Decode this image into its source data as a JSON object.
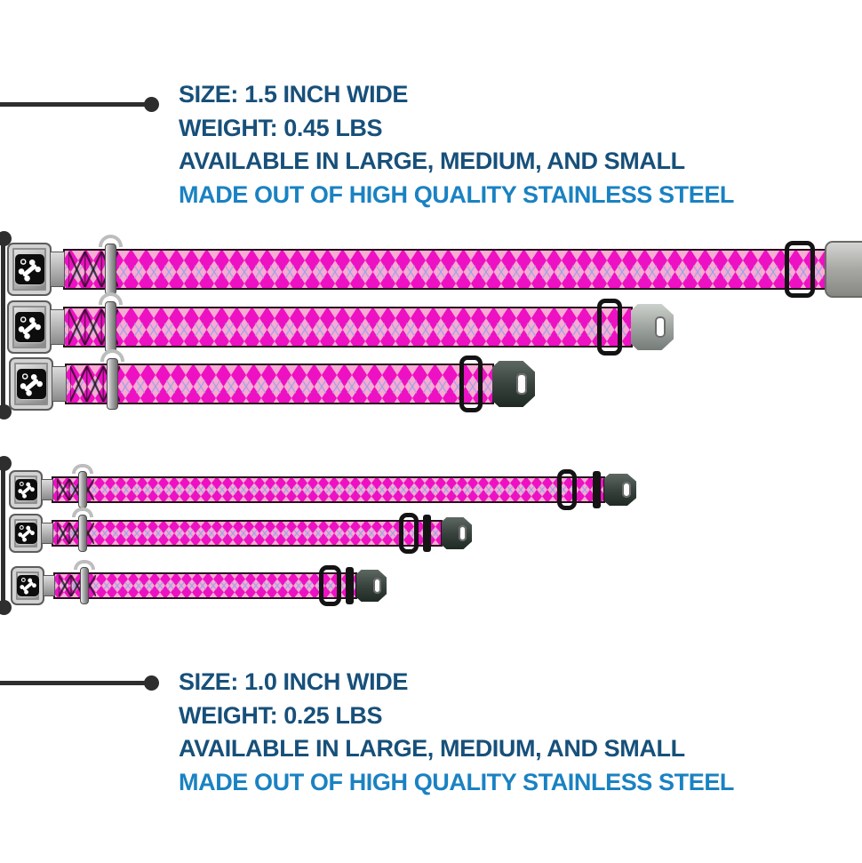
{
  "spec_top": {
    "size": "SIZE: 1.5 INCH WIDE",
    "weight": "WEIGHT: 0.45 LBS",
    "availability": "AVAILABLE IN LARGE, MEDIUM, AND SMALL",
    "material": "MADE OUT OF HIGH QUALITY STAINLESS STEEL"
  },
  "spec_bottom": {
    "size": "SIZE: 1.0 INCH WIDE",
    "weight": "WEIGHT: 0.25 LBS",
    "availability": "AVAILABLE IN LARGE, MEDIUM, AND SMALL",
    "material": "MADE OUT OF HIGH QUALITY STAINLESS STEEL"
  },
  "colors": {
    "spec_navy": "#17507a",
    "spec_light_blue": "#1a82c2",
    "callout_gray": "#2e2e2e",
    "strap_light_pink": "#f8abd3",
    "strap_magenta": "#ee10c3",
    "stitch_lavender": "#97a3e6",
    "hardware_black": "#141414",
    "hardware_silver": "#b5b5b5",
    "hardware_gunmetal": "#39443e"
  },
  "icons": {
    "buckle_logo": "bone-with-seatbelt-ring"
  },
  "collars": [
    {
      "group": "1.5-inch-wide",
      "size": "large"
    },
    {
      "group": "1.5-inch-wide",
      "size": "medium"
    },
    {
      "group": "1.5-inch-wide",
      "size": "small"
    },
    {
      "group": "1.0-inch-wide",
      "size": "large"
    },
    {
      "group": "1.0-inch-wide",
      "size": "medium"
    },
    {
      "group": "1.0-inch-wide",
      "size": "small"
    }
  ]
}
